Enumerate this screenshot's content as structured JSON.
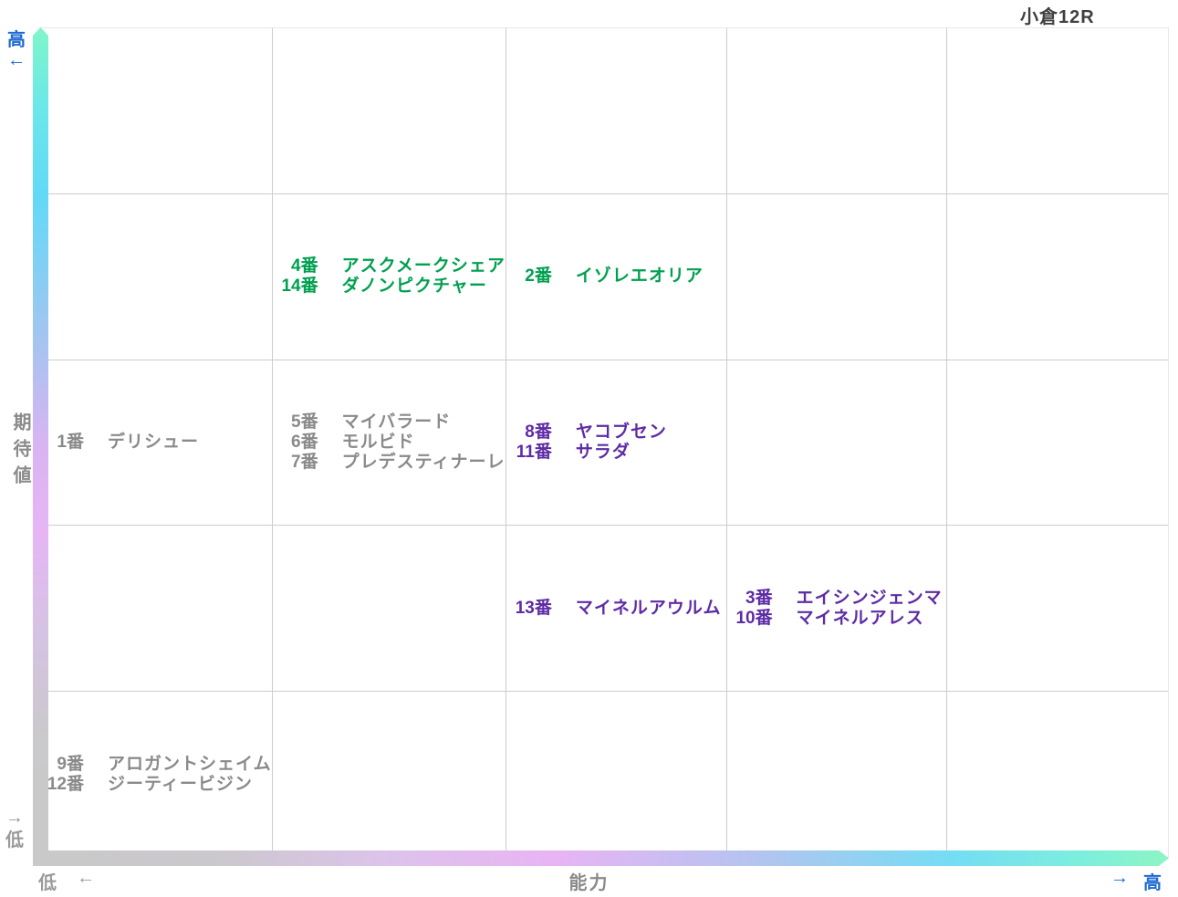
{
  "title": "小倉12R",
  "axis": {
    "y_label": "期待値",
    "y_top_label": "高",
    "y_top_arrow": "←",
    "y_bottom_arrow": "→",
    "y_bottom_label": "低",
    "x_label": "能力",
    "x_left_label": "低",
    "x_left_arrow": "←",
    "x_right_arrow": "→",
    "x_right_label": "高"
  },
  "colors": {
    "green": "#00a050",
    "purple": "#5e2ca5",
    "gray": "#8a8a8a",
    "blue": "#1d6ad1",
    "title_text": "#404040",
    "gridline": "#cccccc",
    "bar_mint": "#80f6c8",
    "bar_cyan": "#62d9f7",
    "bar_periwinkle": "#9fc6f0",
    "bar_lilac": "#e8b4f4",
    "bar_gray": "#c9c9c9"
  },
  "chart_data": {
    "type": "scatter",
    "title": "小倉12R",
    "xlabel": "能力",
    "ylabel": "期待値",
    "x_axis_direction": "低 (left) → 高 (right)",
    "y_axis_direction": "高 (top) → 低 (bottom)",
    "grid": {
      "columns": 5,
      "rows": 5
    },
    "legend": "col = ability band (1 lowest … 5 highest), row = expected-value band (1 highest … 5 lowest)",
    "entries": [
      {
        "col": 2,
        "row": 2,
        "color_key": "green",
        "horses": [
          {
            "num": "4番",
            "name": "アスクメークシェア"
          },
          {
            "num": "14番",
            "name": "ダノンピクチャー"
          }
        ]
      },
      {
        "col": 3,
        "row": 2,
        "color_key": "green",
        "horses": [
          {
            "num": "2番",
            "name": "イゾレエオリア"
          }
        ]
      },
      {
        "col": 1,
        "row": 3,
        "color_key": "gray",
        "horses": [
          {
            "num": "1番",
            "name": "デリシュー"
          }
        ]
      },
      {
        "col": 2,
        "row": 3,
        "color_key": "gray",
        "horses": [
          {
            "num": "5番",
            "name": "マイバラード"
          },
          {
            "num": "6番",
            "name": "モルビド"
          },
          {
            "num": "7番",
            "name": "プレデスティナーレ"
          }
        ]
      },
      {
        "col": 3,
        "row": 3,
        "color_key": "purple",
        "horses": [
          {
            "num": "8番",
            "name": "ヤコブセン"
          },
          {
            "num": "11番",
            "name": "サラダ"
          }
        ]
      },
      {
        "col": 3,
        "row": 4,
        "color_key": "purple",
        "horses": [
          {
            "num": "13番",
            "name": "マイネルアウルム"
          }
        ]
      },
      {
        "col": 4,
        "row": 4,
        "color_key": "purple",
        "horses": [
          {
            "num": "3番",
            "name": "エイシンジェンマ"
          },
          {
            "num": "10番",
            "name": "マイネルアレス"
          }
        ]
      },
      {
        "col": 1,
        "row": 5,
        "color_key": "gray",
        "horses": [
          {
            "num": "9番",
            "name": "アロガントシェイム"
          },
          {
            "num": "12番",
            "name": "ジーティービジン"
          }
        ]
      }
    ]
  }
}
